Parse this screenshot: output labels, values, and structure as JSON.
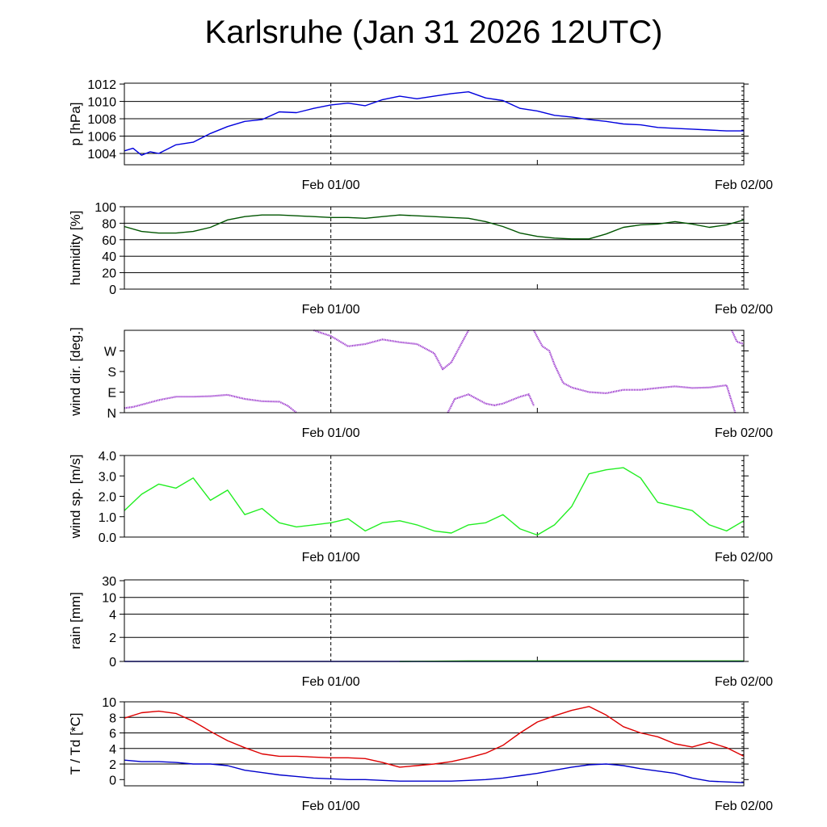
{
  "title": "Karlsruhe (Jan 31 2026 12UTC)",
  "chart_data": [
    {
      "type": "line",
      "id": "pressure",
      "ylabel": "p [hPa]",
      "ylim": [
        1002.7,
        1012.1
      ],
      "yticks": [
        1004,
        1006,
        1008,
        1010,
        1012
      ],
      "ytick_labels": [
        "1004",
        "1006",
        "1008",
        "1010",
        "1012"
      ],
      "grid": [
        1004,
        1006,
        1008,
        1010
      ],
      "x_tick_labels": [
        "Feb 01/00",
        "Feb 02/00"
      ],
      "series": [
        {
          "name": "p",
          "color": "#0000dd",
          "x": [
            0,
            0.5,
            1,
            1.5,
            2,
            3,
            4,
            5,
            6,
            7,
            8,
            9,
            10,
            11,
            12,
            13,
            14,
            15,
            16,
            17,
            18,
            19,
            20,
            21,
            22,
            23,
            24,
            25,
            26,
            27,
            28,
            29,
            30,
            31,
            32,
            33,
            34,
            35,
            36
          ],
          "y": [
            1004.3,
            1004.6,
            1003.8,
            1004.2,
            1004.0,
            1005.0,
            1005.3,
            1006.3,
            1007.1,
            1007.7,
            1007.9,
            1008.8,
            1008.7,
            1009.2,
            1009.6,
            1009.8,
            1009.5,
            1010.2,
            1010.6,
            1010.3,
            1010.6,
            1010.9,
            1011.1,
            1010.4,
            1010.1,
            1009.2,
            1008.9,
            1008.4,
            1008.2,
            1007.9,
            1007.7,
            1007.4,
            1007.3,
            1007.0,
            1006.9,
            1006.8,
            1006.7,
            1006.6,
            1006.6
          ]
        }
      ]
    },
    {
      "type": "line",
      "id": "humidity",
      "ylabel": "humidity [%]",
      "ylim": [
        0,
        100
      ],
      "yticks": [
        0,
        20,
        40,
        60,
        80,
        100
      ],
      "ytick_labels": [
        "0",
        "20",
        "40",
        "60",
        "80",
        "100"
      ],
      "grid": [
        20,
        40,
        60,
        80
      ],
      "x_tick_labels": [
        "Feb 01/00",
        "Feb 02/00"
      ],
      "series": [
        {
          "name": "humidity",
          "color": "#005500",
          "x": [
            0,
            1,
            2,
            3,
            4,
            5,
            6,
            7,
            8,
            9,
            10,
            11,
            12,
            13,
            14,
            15,
            16,
            17,
            18,
            19,
            20,
            21,
            22,
            23,
            24,
            25,
            26,
            27,
            28,
            29,
            30,
            31,
            32,
            33,
            34,
            35,
            36
          ],
          "y": [
            76,
            70,
            68,
            68,
            70,
            75,
            84,
            88,
            90,
            90,
            89,
            88,
            87,
            87,
            86,
            88,
            90,
            89,
            88,
            87,
            86,
            82,
            76,
            68,
            64,
            62,
            61,
            61,
            67,
            75,
            78,
            79,
            82,
            79,
            75,
            78,
            84
          ]
        }
      ]
    },
    {
      "type": "scatter",
      "id": "wind_direction",
      "ylabel": "wind dir. [deg.]",
      "ylim": [
        0,
        360
      ],
      "yticks": [
        0,
        90,
        180,
        270
      ],
      "ytick_labels": [
        "N",
        "E",
        "S",
        "W"
      ],
      "grid": [],
      "x_tick_labels": [
        "Feb 01/00",
        "Feb 02/00"
      ],
      "series": [
        {
          "name": "dir-a",
          "color": "#9933cc",
          "x": [
            0,
            0.5,
            1,
            2,
            3,
            4,
            5,
            6,
            7,
            8,
            9,
            9.5,
            10
          ],
          "y": [
            20,
            25,
            35,
            55,
            70,
            70,
            72,
            78,
            60,
            50,
            48,
            30,
            0
          ]
        },
        {
          "name": "dir-b",
          "color": "#9933cc",
          "x": [
            11,
            12,
            13,
            14,
            15,
            16,
            17,
            18,
            18.5,
            19,
            20
          ],
          "y": [
            360,
            335,
            290,
            300,
            320,
            308,
            300,
            260,
            190,
            220,
            360
          ]
        },
        {
          "name": "dir-c",
          "color": "#9933cc",
          "x": [
            18.8,
            19.2,
            20,
            21,
            21.5,
            22,
            23,
            23.5,
            23.8
          ],
          "y": [
            0,
            60,
            80,
            40,
            32,
            40,
            70,
            80,
            30
          ]
        },
        {
          "name": "dir-d",
          "color": "#9933cc",
          "x": [
            23.8,
            24,
            24.3,
            24.7,
            25,
            25.5,
            26,
            27,
            28,
            29,
            30,
            31,
            32,
            33,
            34,
            35,
            35.5
          ],
          "y": [
            360,
            330,
            290,
            270,
            210,
            130,
            110,
            90,
            85,
            100,
            100,
            108,
            115,
            108,
            110,
            120,
            0
          ]
        },
        {
          "name": "dir-e",
          "color": "#9933cc",
          "x": [
            35.3,
            35.6,
            36
          ],
          "y": [
            360,
            310,
            300
          ]
        }
      ]
    },
    {
      "type": "line",
      "id": "wind_speed",
      "ylabel": "wind sp. [m/s]",
      "ylim": [
        0,
        4
      ],
      "yticks": [
        0,
        1,
        2,
        3,
        4
      ],
      "ytick_labels": [
        "0.0",
        "1.0",
        "2.0",
        "3.0",
        "4.0"
      ],
      "grid": [],
      "x_tick_labels": [
        "Feb 01/00",
        "Feb 02/00"
      ],
      "series": [
        {
          "name": "wind speed",
          "color": "#22ee22",
          "x": [
            0,
            1,
            2,
            3,
            4,
            5,
            6,
            7,
            8,
            9,
            10,
            11,
            12,
            13,
            14,
            15,
            16,
            17,
            18,
            19,
            20,
            21,
            22,
            23,
            24,
            25,
            26,
            27,
            28,
            29,
            30,
            31,
            32,
            33,
            34,
            35,
            36
          ],
          "y": [
            1.3,
            2.1,
            2.6,
            2.4,
            2.9,
            1.8,
            2.3,
            1.1,
            1.4,
            0.7,
            0.5,
            0.6,
            0.7,
            0.9,
            0.3,
            0.7,
            0.8,
            0.6,
            0.3,
            0.2,
            0.6,
            0.7,
            1.1,
            0.4,
            0.1,
            0.6,
            1.5,
            3.1,
            3.3,
            3.4,
            2.9,
            1.7,
            1.5,
            1.3,
            0.6,
            0.3,
            0.8
          ]
        }
      ]
    },
    {
      "type": "line",
      "id": "rain",
      "ylabel": "rain [mm]",
      "ylim": [
        0,
        30
      ],
      "yticks": [
        0,
        2,
        4,
        10,
        30
      ],
      "ytick_labels": [
        "0",
        "2",
        "4",
        "10",
        "30"
      ],
      "grid": [
        2,
        4,
        10
      ],
      "x_tick_labels": [
        "Feb 01/00",
        "Feb 02/00"
      ],
      "series": [
        {
          "name": "rain",
          "color": "#0000dd",
          "x": [
            0,
            16,
            36
          ],
          "y": [
            0,
            0,
            0
          ]
        },
        {
          "name": "rain-accum",
          "color": "#22aa22",
          "x": [
            16,
            20,
            36
          ],
          "y": [
            0,
            0.05,
            0.05
          ]
        }
      ]
    },
    {
      "type": "line",
      "id": "temperature",
      "ylabel": "T / Td [*C]",
      "ylim": [
        -0.8,
        10
      ],
      "yticks": [
        0,
        2,
        4,
        6,
        8,
        10
      ],
      "ytick_labels": [
        "0",
        "2",
        "4",
        "6",
        "8",
        "10"
      ],
      "grid": [
        2,
        4,
        6,
        8
      ],
      "x_tick_labels": [
        "Feb 01/00",
        "Feb 02/00"
      ],
      "series": [
        {
          "name": "T",
          "color": "#dd0000",
          "x": [
            0,
            1,
            2,
            3,
            4,
            5,
            6,
            7,
            8,
            9,
            10,
            11,
            12,
            13,
            14,
            15,
            16,
            17,
            18,
            19,
            20,
            21,
            22,
            23,
            24,
            25,
            26,
            27,
            28,
            29,
            30,
            31,
            32,
            33,
            34,
            35,
            36
          ],
          "y": [
            7.9,
            8.6,
            8.8,
            8.5,
            7.5,
            6.2,
            5.0,
            4.1,
            3.3,
            3.0,
            3.0,
            2.9,
            2.8,
            2.8,
            2.7,
            2.2,
            1.6,
            1.8,
            2.0,
            2.3,
            2.8,
            3.4,
            4.4,
            6.0,
            7.4,
            8.2,
            8.9,
            9.4,
            8.3,
            6.8,
            6.0,
            5.5,
            4.6,
            4.2,
            4.8,
            4.1,
            3.0
          ]
        },
        {
          "name": "Td",
          "color": "#0000cc",
          "x": [
            0,
            1,
            2,
            3,
            4,
            5,
            6,
            7,
            8,
            9,
            10,
            11,
            12,
            13,
            14,
            15,
            16,
            17,
            18,
            19,
            20,
            21,
            22,
            23,
            24,
            25,
            26,
            27,
            28,
            29,
            30,
            31,
            32,
            33,
            34,
            35,
            36
          ],
          "y": [
            2.5,
            2.3,
            2.3,
            2.2,
            2.0,
            2.0,
            1.8,
            1.2,
            0.9,
            0.6,
            0.4,
            0.2,
            0.1,
            0.0,
            0.0,
            -0.1,
            -0.2,
            -0.2,
            -0.2,
            -0.2,
            -0.1,
            0.0,
            0.2,
            0.5,
            0.8,
            1.2,
            1.6,
            1.9,
            2.0,
            1.8,
            1.4,
            1.1,
            0.8,
            0.2,
            -0.2,
            -0.3,
            -0.4
          ]
        }
      ]
    }
  ]
}
